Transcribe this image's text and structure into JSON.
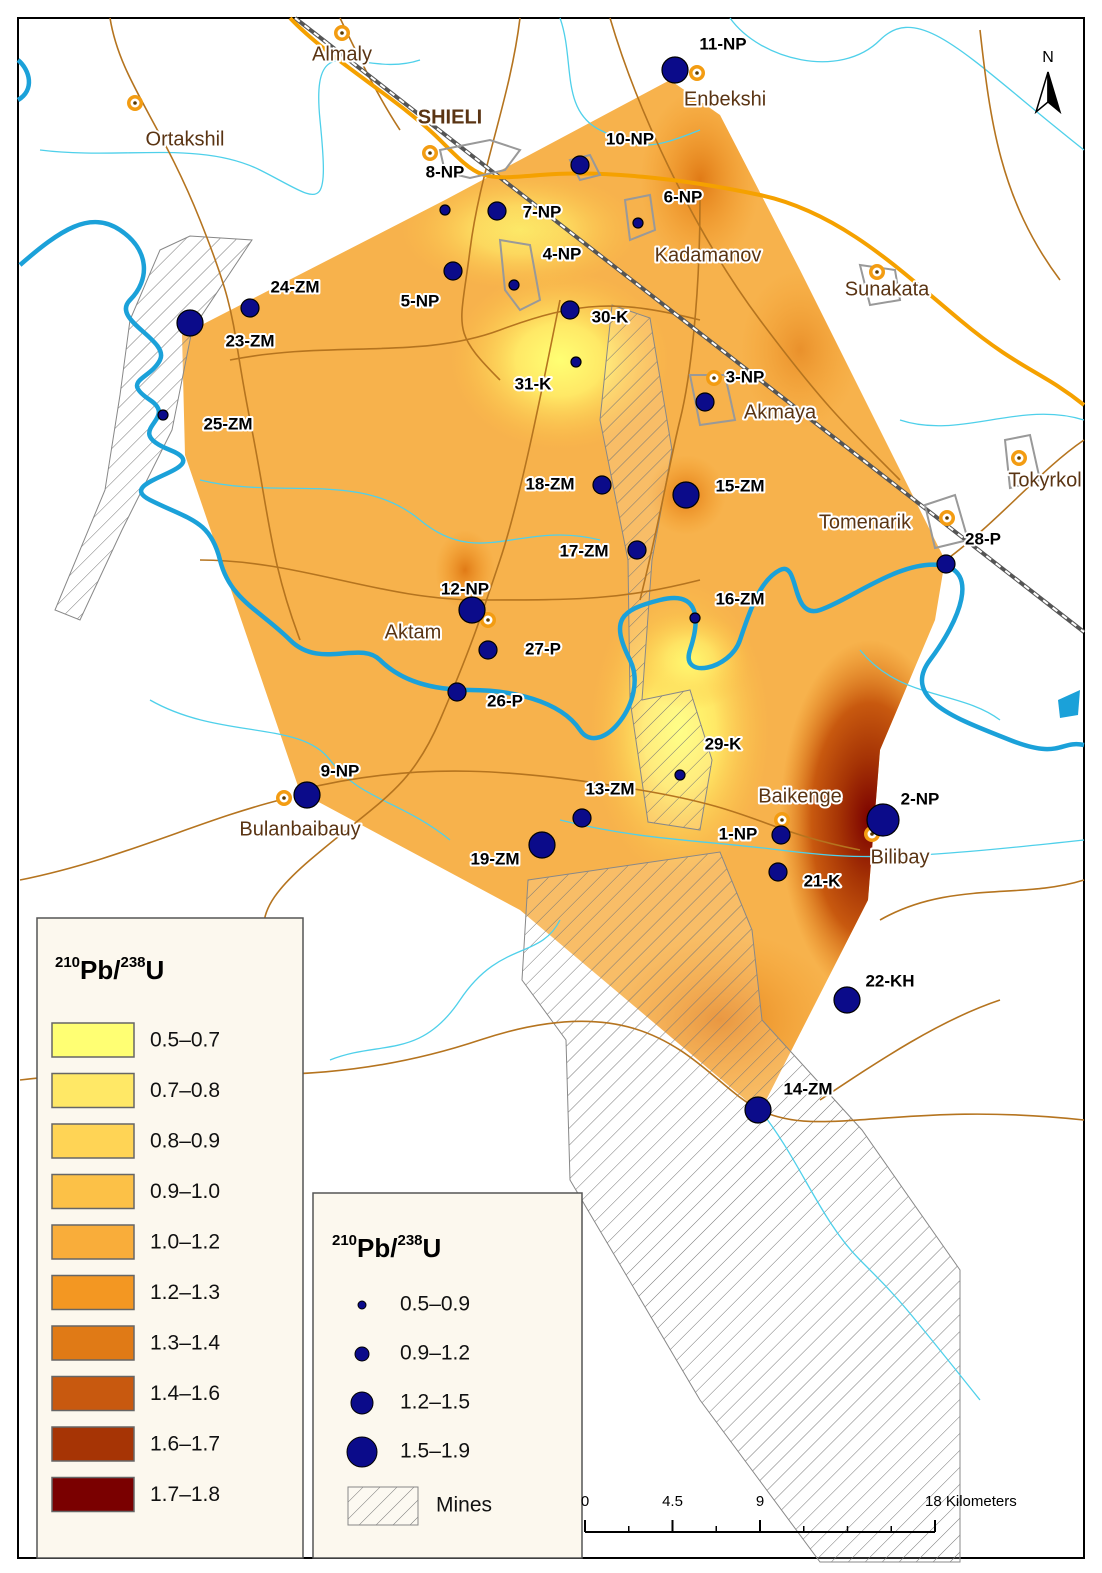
{
  "north_arrow": "N",
  "places": [
    {
      "name": "Almaly"
    },
    {
      "name": "SHIELI"
    },
    {
      "name": "Ortakshil"
    },
    {
      "name": "Enbekshi"
    },
    {
      "name": "Kadamanov"
    },
    {
      "name": "Sunakata"
    },
    {
      "name": "Akmaya"
    },
    {
      "name": "Tokyrkol"
    },
    {
      "name": "Tomenarik"
    },
    {
      "name": "Aktam"
    },
    {
      "name": "Bulanbaibauy"
    },
    {
      "name": "Baikenge"
    },
    {
      "name": "Bilibay"
    }
  ],
  "samples": [
    {
      "label": "11-NP"
    },
    {
      "label": "10-NP"
    },
    {
      "label": "6-NP"
    },
    {
      "label": "7-NP"
    },
    {
      "label": "8-NP"
    },
    {
      "label": "4-NP"
    },
    {
      "label": "5-NP"
    },
    {
      "label": "30-K"
    },
    {
      "label": "24-ZM"
    },
    {
      "label": "23-ZM"
    },
    {
      "label": "31-K"
    },
    {
      "label": "3-NP"
    },
    {
      "label": "25-ZM"
    },
    {
      "label": "18-ZM"
    },
    {
      "label": "15-ZM"
    },
    {
      "label": "17-ZM"
    },
    {
      "label": "28-P"
    },
    {
      "label": "16-ZM"
    },
    {
      "label": "12-NP"
    },
    {
      "label": "27-P"
    },
    {
      "label": "26-P"
    },
    {
      "label": "29-K"
    },
    {
      "label": "9-NP"
    },
    {
      "label": "13-ZM"
    },
    {
      "label": "2-NP"
    },
    {
      "label": "1-NP"
    },
    {
      "label": "19-ZM"
    },
    {
      "label": "21-K"
    },
    {
      "label": "22-KH"
    },
    {
      "label": "14-ZM"
    }
  ],
  "legend_ratio": {
    "title": [
      "210",
      "Pb/",
      "238",
      "U"
    ],
    "classes": [
      {
        "label": "0.5–0.7",
        "color": "#ffff73"
      },
      {
        "label": "0.7–0.8",
        "color": "#ffe866"
      },
      {
        "label": "0.8–0.9",
        "color": "#ffd455"
      },
      {
        "label": "0.9–1.0",
        "color": "#fcc147"
      },
      {
        "label": "1.0–1.2",
        "color": "#f9ad3a"
      },
      {
        "label": "1.2–1.3",
        "color": "#f39722"
      },
      {
        "label": "1.3–1.4",
        "color": "#e07a16"
      },
      {
        "label": "1.4–1.6",
        "color": "#c8590f"
      },
      {
        "label": "1.6–1.7",
        "color": "#a63405"
      },
      {
        "label": "1.7–1.8",
        "color": "#7a0000"
      }
    ]
  },
  "legend_points": {
    "title": [
      "210",
      "Pb/",
      "238",
      "U"
    ],
    "classes": [
      "0.5–0.9",
      "0.9–1.2",
      "1.2–1.5",
      "1.5–1.9"
    ],
    "point_color": "#0b0b8a",
    "mines": "Mines"
  },
  "scale_bar": {
    "ticks": [
      0,
      4.5,
      9,
      {
        "value": 18,
        "label": "18 Kilometers"
      }
    ]
  }
}
